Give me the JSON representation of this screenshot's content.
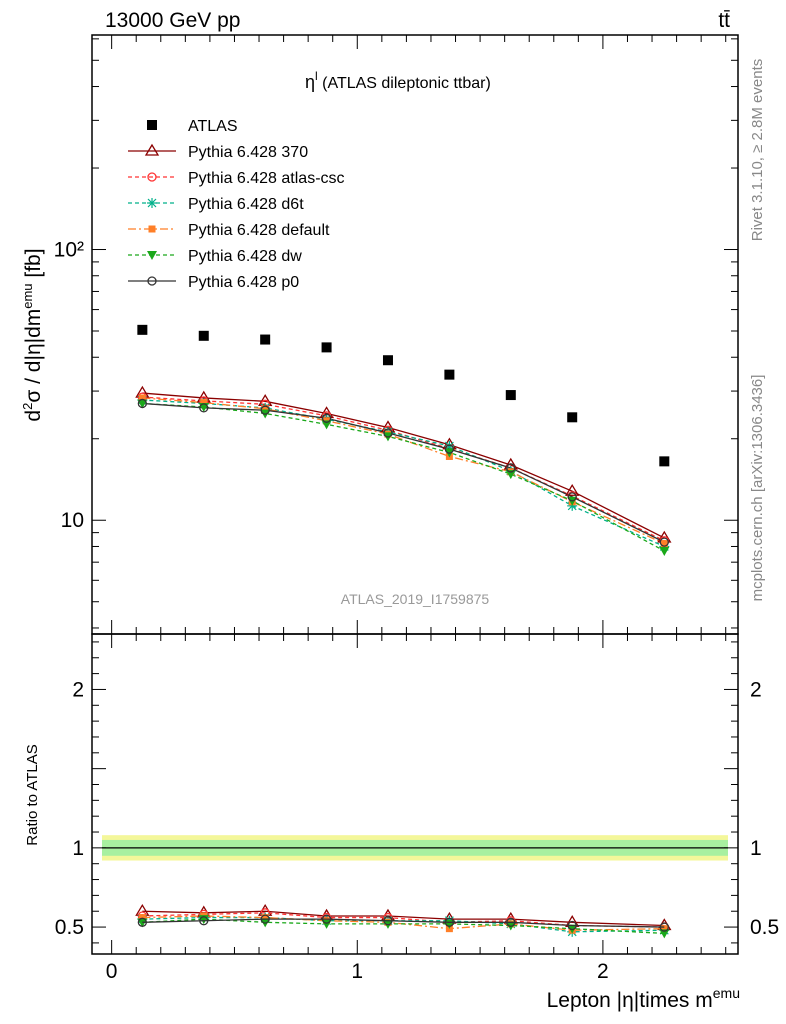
{
  "header": {
    "left": "13000 GeV pp",
    "right": "tt̄"
  },
  "side_labels": {
    "rivet": "Rivet 3.1.10, ≥ 2.8M events",
    "mcplots": "mcplots.cern.ch [arXiv:1306.3436]"
  },
  "chart_data": [
    {
      "type": "scatter",
      "panel": "main",
      "title": "η^l (ATLAS dileptonic ttbar)",
      "title_main": "η",
      "title_sup": "l",
      "title_rest": " (ATLAS dileptonic ttbar)",
      "watermark": "ATLAS_2019_I1759875",
      "ylabel": "d²σ / d|η|dm^emu [fb]",
      "yscale": "log",
      "ylim": [
        3.8,
        620
      ],
      "xlim": [
        -0.08,
        2.55
      ],
      "legend_position": "top-left",
      "x": [
        0.125,
        0.375,
        0.625,
        0.875,
        1.125,
        1.375,
        1.625,
        1.875,
        2.25
      ],
      "series": [
        {
          "name": "ATLAS",
          "color": "#000000",
          "marker": "square",
          "dash": "none",
          "values": [
            50.5,
            48.0,
            46.5,
            43.5,
            39.0,
            34.5,
            29.0,
            24.0,
            16.5
          ]
        },
        {
          "name": "Pythia 6.428 370",
          "color": "#8b0000",
          "marker": "triangle-open",
          "dash": "none",
          "values": [
            29.5,
            28.3,
            27.5,
            24.8,
            22.0,
            19.0,
            16.0,
            12.8,
            8.6
          ]
        },
        {
          "name": "Pythia 6.428 atlas-csc",
          "color": "#ff3333",
          "marker": "circle-open",
          "dash": "4,3",
          "values": [
            28.5,
            27.6,
            26.8,
            24.3,
            21.5,
            18.4,
            15.6,
            12.3,
            8.4
          ]
        },
        {
          "name": "Pythia 6.428 d6t",
          "color": "#00b08a",
          "marker": "star",
          "dash": "4,3",
          "values": [
            27.8,
            27.0,
            26.0,
            23.6,
            21.2,
            18.8,
            15.2,
            11.3,
            8.0
          ]
        },
        {
          "name": "Pythia 6.428 default",
          "color": "#ff7f27",
          "marker": "square-small",
          "dash": "8,3,2,3",
          "values": [
            28.3,
            27.2,
            25.8,
            23.3,
            20.8,
            17.2,
            15.1,
            11.7,
            8.2
          ]
        },
        {
          "name": "Pythia 6.428 dw",
          "color": "#1aa81a",
          "marker": "triangle-down",
          "dash": "4,3",
          "values": [
            27.0,
            26.2,
            24.8,
            22.6,
            20.4,
            17.8,
            14.8,
            11.8,
            7.7
          ]
        },
        {
          "name": "Pythia 6.428 p0",
          "color": "#333333",
          "marker": "circle-open",
          "dash": "none",
          "values": [
            27.0,
            26.0,
            25.5,
            23.8,
            21.0,
            18.3,
            15.6,
            12.2,
            8.3
          ]
        }
      ],
      "ytick_labels": [
        "10",
        "10²"
      ]
    },
    {
      "type": "line",
      "panel": "ratio",
      "ylabel": "Ratio to ATLAS",
      "xlabel": "Lepton |η|times m^emu",
      "ylim": [
        0.33,
        2.35
      ],
      "xlim": [
        -0.08,
        2.55
      ],
      "band_inner": [
        0.95,
        1.05
      ],
      "band_outer": [
        0.92,
        1.08
      ],
      "xtick_labels": [
        "0",
        "1",
        "2"
      ],
      "ytick_labels": [
        "0.5",
        "1",
        "2"
      ],
      "x": [
        0.125,
        0.375,
        0.625,
        0.875,
        1.125,
        1.375,
        1.625,
        1.875,
        2.25
      ],
      "series": [
        {
          "name": "Pythia 6.428 370",
          "values": [
            0.6,
            0.59,
            0.6,
            0.57,
            0.57,
            0.55,
            0.55,
            0.53,
            0.51
          ]
        },
        {
          "name": "Pythia 6.428 atlas-csc",
          "values": [
            0.57,
            0.58,
            0.59,
            0.56,
            0.56,
            0.53,
            0.54,
            0.51,
            0.5
          ]
        },
        {
          "name": "Pythia 6.428 d6t",
          "values": [
            0.55,
            0.56,
            0.56,
            0.54,
            0.54,
            0.54,
            0.52,
            0.47,
            0.48
          ]
        },
        {
          "name": "Pythia 6.428 default",
          "values": [
            0.56,
            0.57,
            0.56,
            0.54,
            0.53,
            0.49,
            0.52,
            0.48,
            0.49
          ]
        },
        {
          "name": "Pythia 6.428 dw",
          "values": [
            0.53,
            0.55,
            0.53,
            0.52,
            0.52,
            0.52,
            0.51,
            0.49,
            0.46
          ]
        },
        {
          "name": "Pythia 6.428 p0",
          "values": [
            0.53,
            0.54,
            0.55,
            0.55,
            0.54,
            0.53,
            0.53,
            0.51,
            0.5
          ]
        }
      ]
    }
  ]
}
